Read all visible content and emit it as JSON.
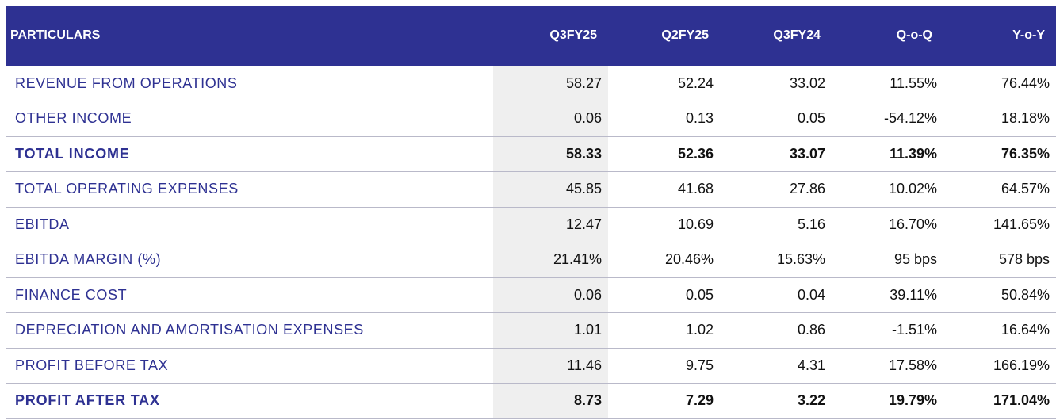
{
  "table": {
    "headers": [
      "PARTICULARS",
      "Q3FY25",
      "Q2FY25",
      "Q3FY24",
      "Q-o-Q",
      "Y-o-Y"
    ],
    "rows": [
      {
        "label": "REVENUE FROM OPERATIONS",
        "values": [
          "58.27",
          "52.24",
          "33.02",
          "11.55%",
          "76.44%"
        ],
        "bold": false
      },
      {
        "label": "OTHER INCOME",
        "values": [
          "0.06",
          "0.13",
          "0.05",
          "-54.12%",
          "18.18%"
        ],
        "bold": false
      },
      {
        "label": "TOTAL INCOME",
        "values": [
          "58.33",
          "52.36",
          "33.07",
          "11.39%",
          "76.35%"
        ],
        "bold": true
      },
      {
        "label": "TOTAL OPERATING EXPENSES",
        "values": [
          "45.85",
          "41.68",
          "27.86",
          "10.02%",
          "64.57%"
        ],
        "bold": false
      },
      {
        "label": "EBITDA",
        "values": [
          "12.47",
          "10.69",
          "5.16",
          "16.70%",
          "141.65%"
        ],
        "bold": false
      },
      {
        "label": "EBITDA MARGIN (%)",
        "values": [
          "21.41%",
          "20.46%",
          "15.63%",
          "95 bps",
          "578 bps"
        ],
        "bold": false
      },
      {
        "label": "FINANCE COST",
        "values": [
          "0.06",
          "0.05",
          "0.04",
          "39.11%",
          "50.84%"
        ],
        "bold": false
      },
      {
        "label": "DEPRECIATION AND AMORTISATION EXPENSES",
        "values": [
          "1.01",
          "1.02",
          "0.86",
          "-1.51%",
          "16.64%"
        ],
        "bold": false
      },
      {
        "label": "PROFIT BEFORE TAX",
        "values": [
          "11.46",
          "9.75",
          "4.31",
          "17.58%",
          "166.19%"
        ],
        "bold": false
      },
      {
        "label": "PROFIT AFTER TAX",
        "values": [
          "8.73",
          "7.29",
          "3.22",
          "19.79%",
          "171.04%"
        ],
        "bold": true
      }
    ]
  },
  "colors": {
    "header_bg": "#2e3192",
    "header_text": "#ffffff",
    "label_text": "#2e3192",
    "highlight_column_bg": "#efefef",
    "row_divider": "#b9b9c9"
  }
}
